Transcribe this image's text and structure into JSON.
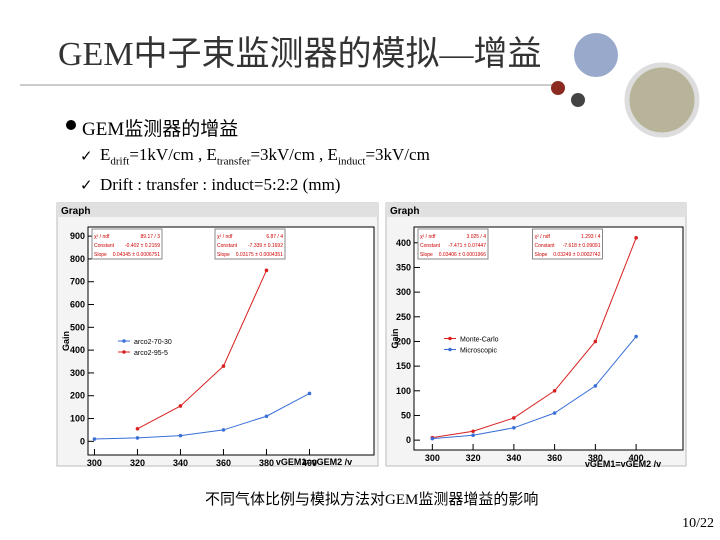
{
  "title": "GEM中子束监测器的模拟—增益",
  "bullet": "GEM监测器的增益",
  "sub_bullets": [
    [
      "E",
      "drift",
      "=1kV/cm , E",
      "transfer",
      "=3kV/cm , E",
      "induct",
      "=3kV/cm"
    ],
    [
      "Drift : transfer : induct=5:2:2 (mm)"
    ]
  ],
  "caption": "不同气体比例与模拟方法对GEM监测器增益的影响",
  "page_number": "10/22",
  "chart_data": [
    {
      "type": "line",
      "title": "Graph",
      "x_label": "vGEM1=vGEM2 /v",
      "y_label": "Gain",
      "xlim": [
        297,
        430
      ],
      "ylim": [
        -60,
        940
      ],
      "xticks": [
        300,
        320,
        340,
        360,
        380,
        400
      ],
      "yticks": [
        0,
        100,
        200,
        300,
        400,
        500,
        600,
        700,
        800,
        900
      ],
      "legend": "center left",
      "stats": [
        [
          [
            "χ² / ndf",
            "89.17 / 3"
          ],
          [
            "Constant",
            "-0.402 ± 0.2159"
          ],
          [
            "Slope",
            "0.04345 ± 0.0006751"
          ]
        ],
        [
          [
            "χ² / ndf",
            "6.87 / 4"
          ],
          [
            "Constant",
            "-7.339 ± 0.1692"
          ],
          [
            "Slope",
            "0.03175 ± 0.0004351"
          ]
        ]
      ],
      "x": [
        300,
        320,
        340,
        360,
        380,
        400
      ],
      "series": [
        {
          "name": "arco2-70-30",
          "color": "#3a6fd8",
          "values": [
            10,
            15,
            25,
            50,
            110,
            210
          ]
        },
        {
          "name": "arco2-95-5",
          "color": "#d82020",
          "values": [
            null,
            55,
            155,
            330,
            750,
            null
          ]
        }
      ]
    },
    {
      "type": "line",
      "title": "Graph",
      "x_label": "vGEM1=vGEM2 /v",
      "y_label": "Gain",
      "xlim": [
        291,
        423
      ],
      "ylim": [
        -20,
        432
      ],
      "xticks": [
        300,
        320,
        340,
        360,
        380,
        400
      ],
      "yticks": [
        0,
        50,
        100,
        150,
        200,
        250,
        300,
        350,
        400
      ],
      "legend": "center left",
      "stats": [
        [
          [
            "χ² / ndf",
            "3.025 / 4"
          ],
          [
            "Constant",
            "-7.471 ± 0.07447"
          ],
          [
            "Slope",
            "0.03406 ± 0.0001966"
          ]
        ],
        [
          [
            "χ² / ndf",
            "1.293 / 4"
          ],
          [
            "Constant",
            "-7.618 ± 0.09091"
          ],
          [
            "Slope",
            "0.03249 ± 0.0002742"
          ]
        ]
      ],
      "x": [
        300,
        320,
        340,
        360,
        380,
        400
      ],
      "series": [
        {
          "name": "Monte-Carlo",
          "color": "#d82020",
          "values": [
            5,
            18,
            45,
            100,
            200,
            410
          ]
        },
        {
          "name": "Microscopic",
          "color": "#3a6fd8",
          "values": [
            3,
            10,
            25,
            55,
            110,
            210
          ]
        }
      ]
    }
  ]
}
